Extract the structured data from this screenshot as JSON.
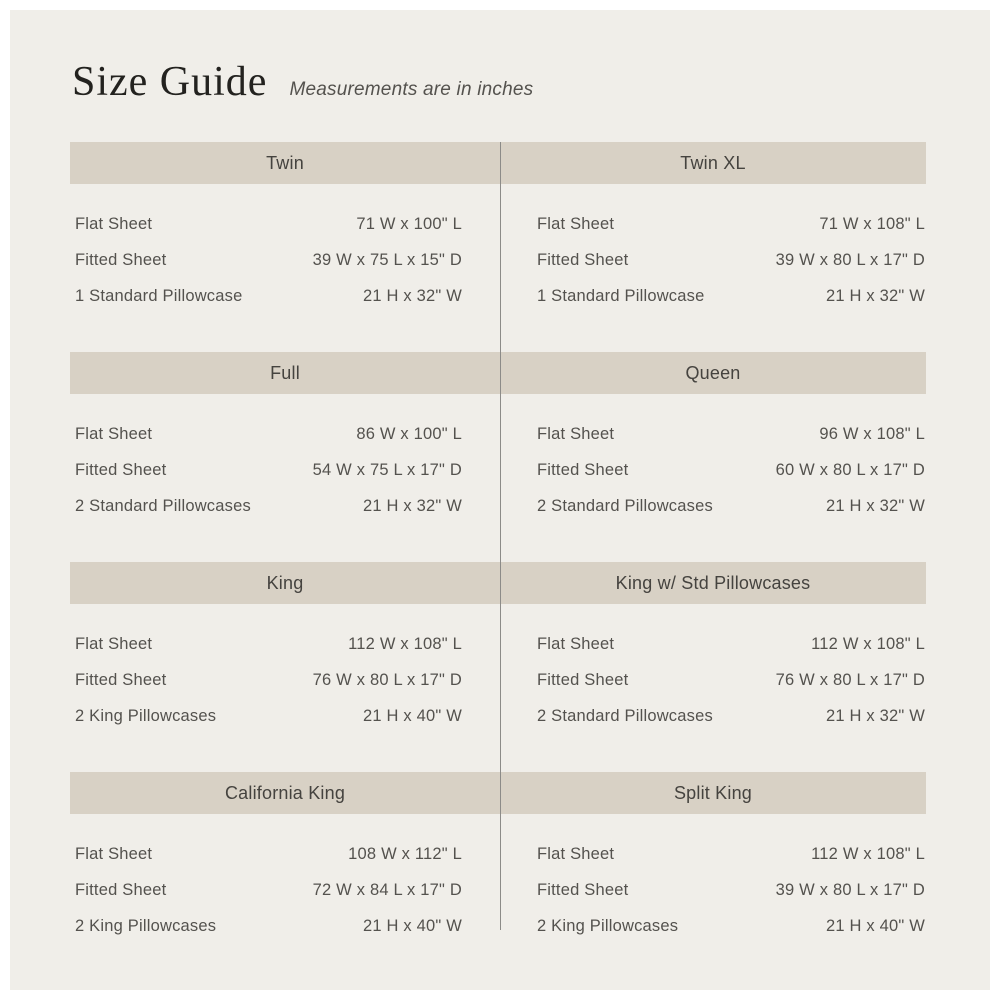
{
  "page": {
    "title": "Size Guide",
    "subtitle": "Measurements are in inches"
  },
  "colors": {
    "page_bg": "#ffffff",
    "panel_bg": "#f0eee9",
    "header_bg": "#d8d1c5",
    "text": "#54524e",
    "title_text": "#23221f",
    "divider": "#8c8b88"
  },
  "columns": [
    {
      "side": "left",
      "sections": [
        {
          "name": "Twin",
          "rows": [
            {
              "label": "Flat Sheet",
              "value": "71 W x 100\" L"
            },
            {
              "label": "Fitted Sheet",
              "value": "39 W x 75 L x 15\" D"
            },
            {
              "label": "1 Standard Pillowcase",
              "value": "21 H x 32\" W"
            }
          ]
        },
        {
          "name": "Full",
          "rows": [
            {
              "label": "Flat Sheet",
              "value": "86 W x 100\" L"
            },
            {
              "label": "Fitted Sheet",
              "value": "54 W x 75 L x 17\" D"
            },
            {
              "label": "2 Standard Pillowcases",
              "value": "21 H x 32\" W"
            }
          ]
        },
        {
          "name": "King",
          "rows": [
            {
              "label": "Flat Sheet",
              "value": "112 W x 108\" L"
            },
            {
              "label": "Fitted Sheet",
              "value": "76 W x 80 L x 17\" D"
            },
            {
              "label": "2 King Pillowcases",
              "value": "21 H x 40\" W"
            }
          ]
        },
        {
          "name": "California King",
          "rows": [
            {
              "label": "Flat Sheet",
              "value": "108 W x 112\" L"
            },
            {
              "label": "Fitted Sheet",
              "value": "72 W x 84 L x 17\" D"
            },
            {
              "label": "2 King Pillowcases",
              "value": "21 H x 40\" W"
            }
          ]
        }
      ]
    },
    {
      "side": "right",
      "sections": [
        {
          "name": "Twin XL",
          "rows": [
            {
              "label": "Flat Sheet",
              "value": "71 W x 108\" L"
            },
            {
              "label": "Fitted Sheet",
              "value": "39 W x 80 L x 17\" D"
            },
            {
              "label": "1 Standard Pillowcase",
              "value": "21 H x 32\" W"
            }
          ]
        },
        {
          "name": "Queen",
          "rows": [
            {
              "label": "Flat Sheet",
              "value": "96 W x 108\" L"
            },
            {
              "label": "Fitted Sheet",
              "value": "60 W x 80 L x 17\" D"
            },
            {
              "label": "2 Standard Pillowcases",
              "value": "21 H x 32\" W"
            }
          ]
        },
        {
          "name": "King w/ Std Pillowcases",
          "rows": [
            {
              "label": "Flat Sheet",
              "value": "112 W x 108\" L"
            },
            {
              "label": "Fitted Sheet",
              "value": "76 W x 80 L x 17\" D"
            },
            {
              "label": "2 Standard Pillowcases",
              "value": "21 H x 32\" W"
            }
          ]
        },
        {
          "name": "Split King",
          "rows": [
            {
              "label": "Flat Sheet",
              "value": "112 W x 108\" L"
            },
            {
              "label": "Fitted Sheet",
              "value": "39 W x 80 L x 17\" D"
            },
            {
              "label": "2 King Pillowcases",
              "value": "21 H x 40\" W"
            }
          ]
        }
      ]
    }
  ]
}
